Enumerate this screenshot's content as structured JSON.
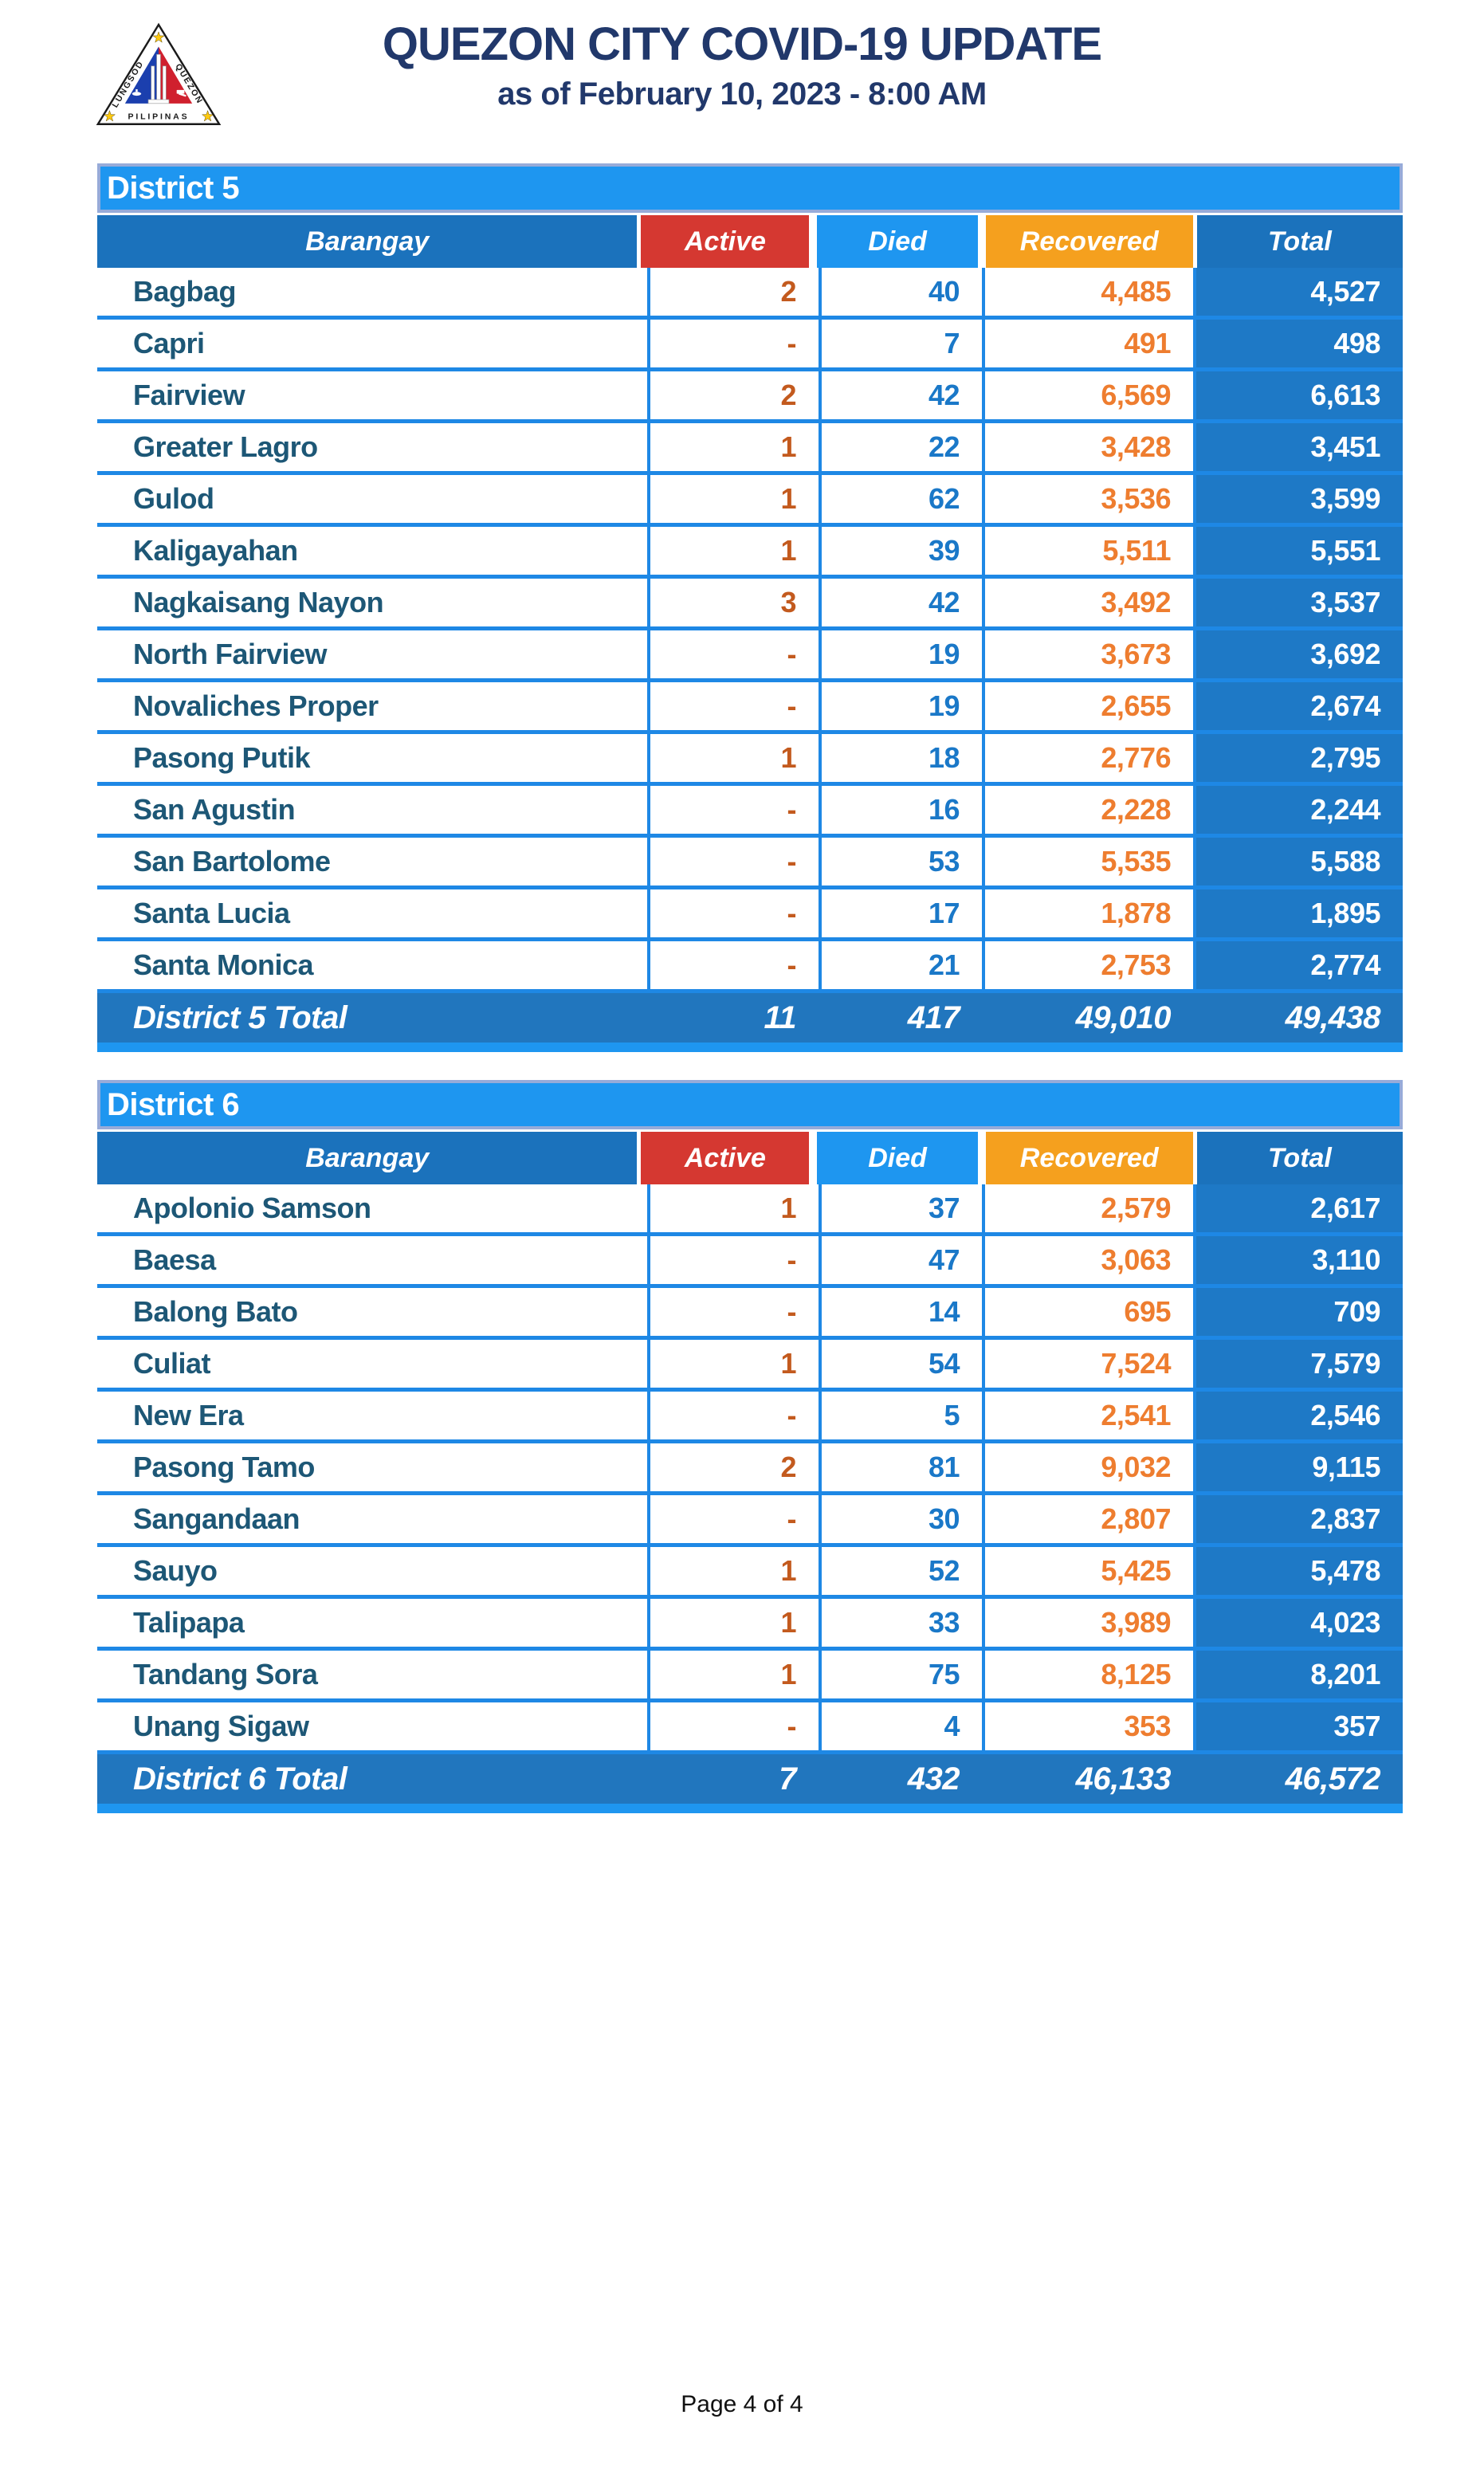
{
  "header": {
    "title": "QUEZON CITY COVID-19 UPDATE",
    "subtitle": "as of February 10, 2023 - 8:00 AM"
  },
  "logo": {
    "text_left": "LUNGSOD",
    "text_right": "QUEZON",
    "text_bottom": "PILIPINAS"
  },
  "columns": [
    {
      "key": "barangay",
      "label": "Barangay"
    },
    {
      "key": "active",
      "label": "Active"
    },
    {
      "key": "died",
      "label": "Died"
    },
    {
      "key": "recovered",
      "label": "Recovered"
    },
    {
      "key": "total",
      "label": "Total"
    }
  ],
  "tables": [
    {
      "district": "District 5",
      "rows": [
        {
          "barangay": "Bagbag",
          "active": "2",
          "died": "40",
          "recovered": "4,485",
          "total": "4,527"
        },
        {
          "barangay": "Capri",
          "active": "-",
          "died": "7",
          "recovered": "491",
          "total": "498"
        },
        {
          "barangay": "Fairview",
          "active": "2",
          "died": "42",
          "recovered": "6,569",
          "total": "6,613"
        },
        {
          "barangay": "Greater Lagro",
          "active": "1",
          "died": "22",
          "recovered": "3,428",
          "total": "3,451"
        },
        {
          "barangay": "Gulod",
          "active": "1",
          "died": "62",
          "recovered": "3,536",
          "total": "3,599"
        },
        {
          "barangay": "Kaligayahan",
          "active": "1",
          "died": "39",
          "recovered": "5,511",
          "total": "5,551"
        },
        {
          "barangay": "Nagkaisang Nayon",
          "active": "3",
          "died": "42",
          "recovered": "3,492",
          "total": "3,537"
        },
        {
          "barangay": "North Fairview",
          "active": "-",
          "died": "19",
          "recovered": "3,673",
          "total": "3,692"
        },
        {
          "barangay": "Novaliches Proper",
          "active": "-",
          "died": "19",
          "recovered": "2,655",
          "total": "2,674"
        },
        {
          "barangay": "Pasong Putik",
          "active": "1",
          "died": "18",
          "recovered": "2,776",
          "total": "2,795"
        },
        {
          "barangay": "San Agustin",
          "active": "-",
          "died": "16",
          "recovered": "2,228",
          "total": "2,244"
        },
        {
          "barangay": "San Bartolome",
          "active": "-",
          "died": "53",
          "recovered": "5,535",
          "total": "5,588"
        },
        {
          "barangay": "Santa Lucia",
          "active": "-",
          "died": "17",
          "recovered": "1,878",
          "total": "1,895"
        },
        {
          "barangay": "Santa Monica",
          "active": "-",
          "died": "21",
          "recovered": "2,753",
          "total": "2,774"
        }
      ],
      "total": {
        "label": "District 5 Total",
        "active": "11",
        "died": "417",
        "recovered": "49,010",
        "total": "49,438"
      }
    },
    {
      "district": "District 6",
      "rows": [
        {
          "barangay": "Apolonio Samson",
          "active": "1",
          "died": "37",
          "recovered": "2,579",
          "total": "2,617"
        },
        {
          "barangay": "Baesa",
          "active": "-",
          "died": "47",
          "recovered": "3,063",
          "total": "3,110"
        },
        {
          "barangay": "Balong Bato",
          "active": "-",
          "died": "14",
          "recovered": "695",
          "total": "709"
        },
        {
          "barangay": "Culiat",
          "active": "1",
          "died": "54",
          "recovered": "7,524",
          "total": "7,579"
        },
        {
          "barangay": "New Era",
          "active": "-",
          "died": "5",
          "recovered": "2,541",
          "total": "2,546"
        },
        {
          "barangay": "Pasong Tamo",
          "active": "2",
          "died": "81",
          "recovered": "9,032",
          "total": "9,115"
        },
        {
          "barangay": "Sangandaan",
          "active": "-",
          "died": "30",
          "recovered": "2,807",
          "total": "2,837"
        },
        {
          "barangay": "Sauyo",
          "active": "1",
          "died": "52",
          "recovered": "5,425",
          "total": "5,478"
        },
        {
          "barangay": "Talipapa",
          "active": "1",
          "died": "33",
          "recovered": "3,989",
          "total": "4,023"
        },
        {
          "barangay": "Tandang Sora",
          "active": "1",
          "died": "75",
          "recovered": "8,125",
          "total": "8,201"
        },
        {
          "barangay": "Unang Sigaw",
          "active": "-",
          "died": "4",
          "recovered": "353",
          "total": "357"
        }
      ],
      "total": {
        "label": "District 6 Total",
        "active": "7",
        "died": "432",
        "recovered": "46,133",
        "total": "46,572"
      }
    }
  ],
  "footer": {
    "page_label": "Page 4 of 4"
  },
  "colors": {
    "title-navy": "#21386B",
    "banner-blue": "#1E96F0",
    "lavender": "#97ABD9",
    "header-dark-blue": "#1B72BC",
    "active-red": "#D53831",
    "recovered-orange": "#F5A01E",
    "grid-blue": "#1E88E5",
    "totalcol-blue": "#1E79C6",
    "totalrow-blue": "#2176BE",
    "name-teal": "#1D5776",
    "active-text": "#C35A1E",
    "died-text": "#1A78C8",
    "recovered-text": "#EE7D2F",
    "logo-blue": "#1B3FAE",
    "logo-red": "#D0202E",
    "star-gold": "#FFC90E"
  }
}
